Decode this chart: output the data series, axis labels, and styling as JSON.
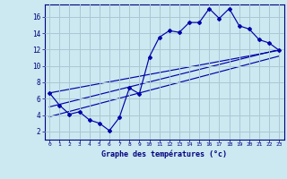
{
  "xlabel": "Graphe des températures (°c)",
  "bg_color": "#cce8f0",
  "line_color": "#0000aa",
  "grid_color": "#aac8d4",
  "x_ticks": [
    0,
    1,
    2,
    3,
    4,
    5,
    6,
    7,
    8,
    9,
    10,
    11,
    12,
    13,
    14,
    15,
    16,
    17,
    18,
    19,
    20,
    21,
    22,
    23
  ],
  "y_ticks": [
    2,
    4,
    6,
    8,
    10,
    12,
    14,
    16
  ],
  "xlim": [
    -0.5,
    23.5
  ],
  "ylim": [
    1.0,
    17.5
  ],
  "temp_curve": {
    "x": [
      0,
      1,
      2,
      3,
      4,
      5,
      6,
      7,
      8,
      9,
      10,
      11,
      12,
      13,
      14,
      15,
      16,
      17,
      18,
      19,
      20,
      21,
      22,
      23
    ],
    "y": [
      6.7,
      5.2,
      4.1,
      4.4,
      3.4,
      3.0,
      2.1,
      3.7,
      7.3,
      6.6,
      11.1,
      13.5,
      14.3,
      14.1,
      15.3,
      15.3,
      17.0,
      15.8,
      17.0,
      14.9,
      14.5,
      13.2,
      12.8,
      11.9
    ]
  },
  "line2": {
    "x": [
      0,
      23
    ],
    "y": [
      6.7,
      11.9
    ]
  },
  "line3": {
    "x": [
      0,
      23
    ],
    "y": [
      5.0,
      12.0
    ]
  },
  "line4": {
    "x": [
      0,
      23
    ],
    "y": [
      3.8,
      11.2
    ]
  }
}
